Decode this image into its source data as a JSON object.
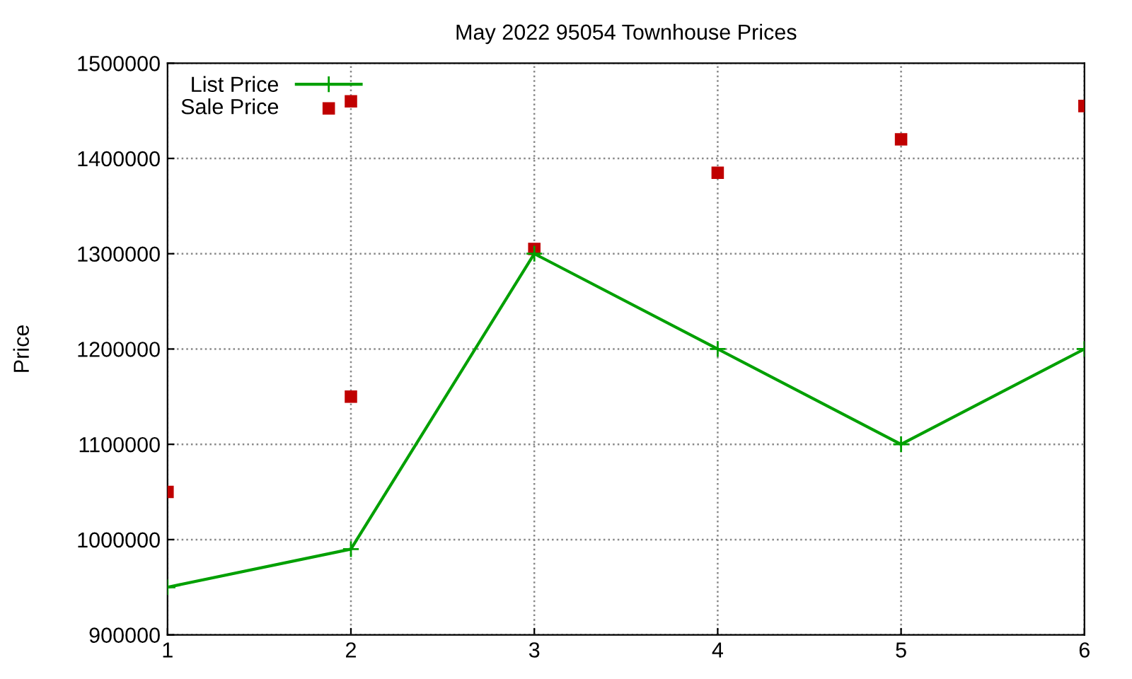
{
  "chart_data": {
    "type": "line",
    "title": "May 2022 95054 Townhouse Prices",
    "ylabel": "Price",
    "xlim": [
      1,
      6
    ],
    "xticks": [
      1,
      2,
      3,
      4,
      5,
      6
    ],
    "ylim": [
      900000,
      1500000
    ],
    "yticks": [
      900000,
      1000000,
      1100000,
      1200000,
      1300000,
      1400000,
      1500000
    ],
    "grid": true,
    "legend": "top left",
    "series": [
      {
        "name": "List Price",
        "marker": "cross",
        "line_style": "solid",
        "color": "#00a000",
        "x": [
          1,
          2,
          3,
          4,
          5,
          6
        ],
        "values": [
          950000,
          990000,
          1300000,
          1200000,
          1100000,
          1200000
        ]
      },
      {
        "name": "Sale Price",
        "type": "scatter",
        "marker": "square",
        "color": "#c00000",
        "x": [
          1,
          2,
          2,
          3,
          4,
          5,
          6
        ],
        "values": [
          1050000,
          1150000,
          1460000,
          1305000,
          1385000,
          1420000,
          1455000
        ]
      }
    ]
  }
}
